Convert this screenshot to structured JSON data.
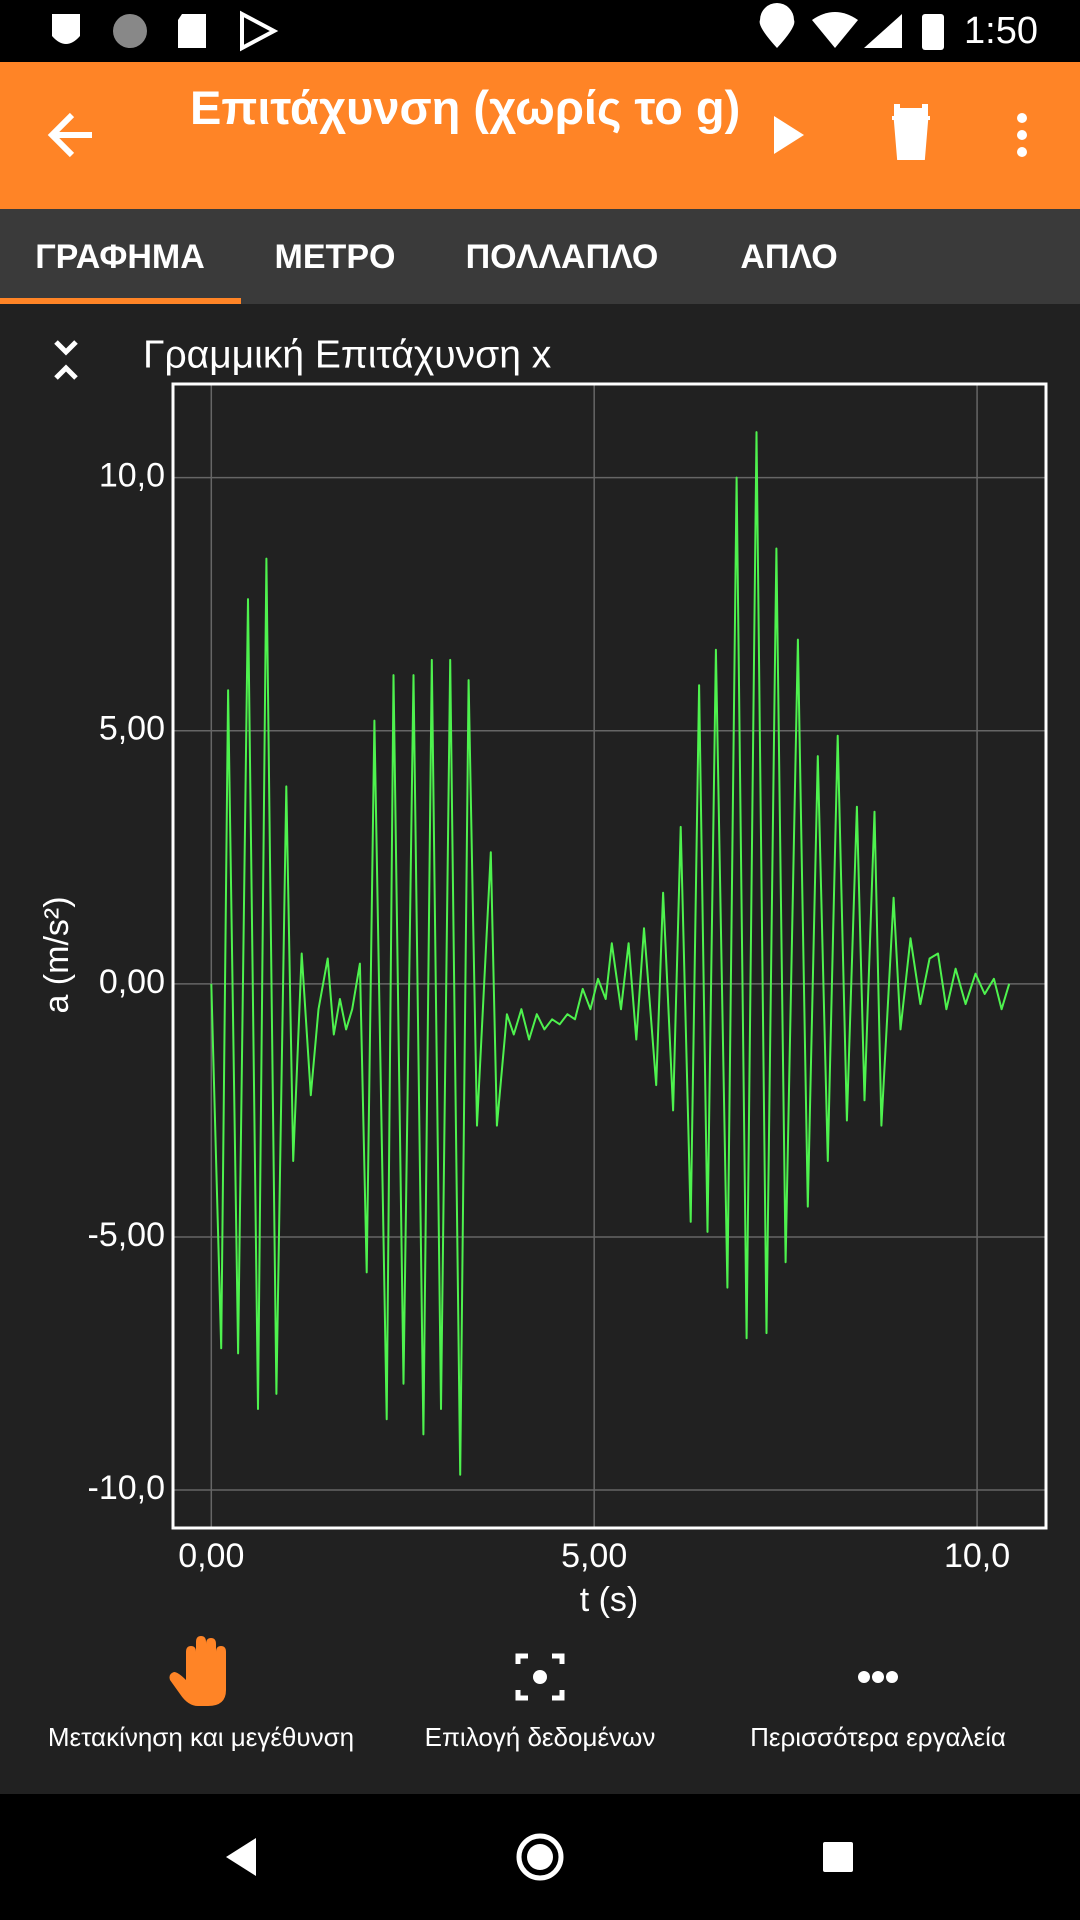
{
  "status_bar": {
    "time": "1:50"
  },
  "toolbar": {
    "title": "Επιτάχυνση (χωρίς το g)"
  },
  "tabs": [
    "ΓΡΑΦΗΜΑ",
    "ΜΕΤΡΟ",
    "ΠΟΛΛΑΠΛΟ",
    "ΑΠΛΟ"
  ],
  "chart_data": {
    "type": "line",
    "title": "Γραμμική Επιτάχυνση x",
    "x_label": "t (s)",
    "y_label": "a (m/s²)",
    "color": "#4ef24e",
    "grid": true,
    "xlim": [
      -0.5,
      10.9
    ],
    "ylim": [
      -10.75,
      11.85
    ],
    "xticks": [
      {
        "value": 0,
        "label": "0,00"
      },
      {
        "value": 5,
        "label": "5,00"
      },
      {
        "value": 10,
        "label": "10,0"
      }
    ],
    "yticks": [
      {
        "value": -10,
        "label": "-10,0"
      },
      {
        "value": -5,
        "label": "-5,00"
      },
      {
        "value": 0,
        "label": "0,00"
      },
      {
        "value": 5,
        "label": "5,00"
      },
      {
        "value": 10,
        "label": "10,0"
      }
    ],
    "x": [
      0,
      0.13,
      0.22,
      0.35,
      0.48,
      0.61,
      0.72,
      0.85,
      0.98,
      1.07,
      1.18,
      1.3,
      1.4,
      1.52,
      1.6,
      1.68,
      1.76,
      1.84,
      1.94,
      2.03,
      2.13,
      2.29,
      2.38,
      2.51,
      2.64,
      2.77,
      2.88,
      3.0,
      3.12,
      3.25,
      3.36,
      3.47,
      3.65,
      3.73,
      3.86,
      3.95,
      4.05,
      4.15,
      4.25,
      4.35,
      4.45,
      4.55,
      4.65,
      4.75,
      4.85,
      4.95,
      5.05,
      5.15,
      5.23,
      5.35,
      5.45,
      5.55,
      5.65,
      5.81,
      5.9,
      6.03,
      6.13,
      6.26,
      6.37,
      6.48,
      6.59,
      6.74,
      6.86,
      6.99,
      7.12,
      7.25,
      7.38,
      7.5,
      7.66,
      7.79,
      7.92,
      8.05,
      8.18,
      8.3,
      8.43,
      8.53,
      8.66,
      8.75,
      8.91,
      9.0,
      9.13,
      9.26,
      9.38,
      9.49,
      9.6,
      9.72,
      9.85,
      9.98,
      10.1,
      10.22,
      10.32,
      10.42
    ],
    "values": [
      0,
      -7.2,
      5.8,
      -7.3,
      7.6,
      -8.4,
      8.4,
      -8.1,
      3.9,
      -3.5,
      0.6,
      -2.2,
      -0.5,
      0.5,
      -1.0,
      -0.3,
      -0.9,
      -0.5,
      0.4,
      -5.7,
      5.2,
      -8.6,
      6.1,
      -7.9,
      6.1,
      -8.9,
      6.4,
      -8.4,
      6.4,
      -9.7,
      6.0,
      -2.8,
      2.6,
      -2.8,
      -0.6,
      -1.0,
      -0.5,
      -1.1,
      -0.6,
      -0.9,
      -0.7,
      -0.8,
      -0.6,
      -0.7,
      -0.1,
      -0.5,
      0.1,
      -0.3,
      0.8,
      -0.5,
      0.8,
      -1.1,
      1.1,
      -2.0,
      1.8,
      -2.5,
      3.1,
      -4.7,
      5.9,
      -4.9,
      6.6,
      -6.0,
      10.0,
      -7.0,
      10.9,
      -6.9,
      8.6,
      -5.5,
      6.8,
      -4.4,
      4.5,
      -3.5,
      4.9,
      -2.7,
      3.5,
      -2.3,
      3.4,
      -2.8,
      1.7,
      -0.9,
      0.9,
      -0.4,
      0.5,
      0.6,
      -0.5,
      0.3,
      -0.4,
      0.2,
      -0.2,
      0.1,
      -0.5,
      0
    ]
  },
  "tools": [
    "Μετακίνηση και μεγέθυνση",
    "Επιλογή δεδομένων",
    "Περισσότερα εργαλεία"
  ]
}
